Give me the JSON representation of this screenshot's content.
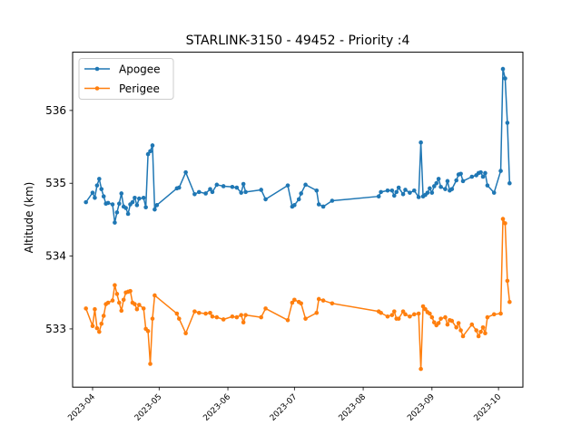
{
  "chart_data": {
    "type": "line",
    "title": "STARLINK-3150 - 49452 - Priority :4",
    "xlabel": "",
    "ylabel": "Altitude (km)",
    "x_type": "date",
    "xlim": [
      "2023-03-23",
      "2023-10-12"
    ],
    "ylim": [
      532.2,
      536.8
    ],
    "x_ticks": [
      "2023-04",
      "2023-05",
      "2023-06",
      "2023-07",
      "2023-08",
      "2023-09",
      "2023-10"
    ],
    "y_ticks": [
      533,
      534,
      535,
      536
    ],
    "grid": false,
    "legend_position": "upper left",
    "series": [
      {
        "name": "Apogee",
        "color": "#1f77b4",
        "points": [
          [
            "2023-03-29",
            534.74
          ],
          [
            "2023-04-01",
            534.87
          ],
          [
            "2023-04-02",
            534.8
          ],
          [
            "2023-04-03",
            534.97
          ],
          [
            "2023-04-04",
            535.06
          ],
          [
            "2023-04-05",
            534.92
          ],
          [
            "2023-04-06",
            534.82
          ],
          [
            "2023-04-07",
            534.72
          ],
          [
            "2023-04-08",
            534.73
          ],
          [
            "2023-04-10",
            534.71
          ],
          [
            "2023-04-11",
            534.46
          ],
          [
            "2023-04-12",
            534.6
          ],
          [
            "2023-04-13",
            534.72
          ],
          [
            "2023-04-14",
            534.86
          ],
          [
            "2023-04-15",
            534.68
          ],
          [
            "2023-04-16",
            534.66
          ],
          [
            "2023-04-17",
            534.58
          ],
          [
            "2023-04-18",
            534.71
          ],
          [
            "2023-04-19",
            534.74
          ],
          [
            "2023-04-20",
            534.8
          ],
          [
            "2023-04-21",
            534.7
          ],
          [
            "2023-04-22",
            534.79
          ],
          [
            "2023-04-24",
            534.8
          ],
          [
            "2023-04-25",
            534.67
          ],
          [
            "2023-04-26",
            535.4
          ],
          [
            "2023-04-27",
            535.44
          ],
          [
            "2023-04-28",
            535.52
          ],
          [
            "2023-04-29",
            534.64
          ],
          [
            "2023-04-30",
            534.7
          ],
          [
            "2023-05-09",
            534.93
          ],
          [
            "2023-05-10",
            534.94
          ],
          [
            "2023-05-13",
            535.15
          ],
          [
            "2023-05-17",
            534.85
          ],
          [
            "2023-05-19",
            534.88
          ],
          [
            "2023-05-22",
            534.86
          ],
          [
            "2023-05-24",
            534.92
          ],
          [
            "2023-05-25",
            534.88
          ],
          [
            "2023-05-27",
            534.98
          ],
          [
            "2023-05-30",
            534.96
          ],
          [
            "2023-06-03",
            534.95
          ],
          [
            "2023-06-05",
            534.94
          ],
          [
            "2023-06-07",
            534.87
          ],
          [
            "2023-06-08",
            534.99
          ],
          [
            "2023-06-09",
            534.88
          ],
          [
            "2023-06-16",
            534.91
          ],
          [
            "2023-06-18",
            534.78
          ],
          [
            "2023-06-28",
            534.97
          ],
          [
            "2023-06-30",
            534.68
          ],
          [
            "2023-07-01",
            534.7
          ],
          [
            "2023-07-03",
            534.78
          ],
          [
            "2023-07-04",
            534.86
          ],
          [
            "2023-07-06",
            534.98
          ],
          [
            "2023-07-11",
            534.9
          ],
          [
            "2023-07-12",
            534.71
          ],
          [
            "2023-07-14",
            534.68
          ],
          [
            "2023-07-18",
            534.76
          ],
          [
            "2023-08-08",
            534.82
          ],
          [
            "2023-08-09",
            534.88
          ],
          [
            "2023-08-12",
            534.9
          ],
          [
            "2023-08-14",
            534.9
          ],
          [
            "2023-08-15",
            534.83
          ],
          [
            "2023-08-16",
            534.88
          ],
          [
            "2023-08-17",
            534.94
          ],
          [
            "2023-08-19",
            534.85
          ],
          [
            "2023-08-20",
            534.91
          ],
          [
            "2023-08-22",
            534.87
          ],
          [
            "2023-08-24",
            534.9
          ],
          [
            "2023-08-26",
            534.81
          ],
          [
            "2023-08-27",
            535.56
          ],
          [
            "2023-08-28",
            534.82
          ],
          [
            "2023-08-29",
            534.84
          ],
          [
            "2023-08-30",
            534.87
          ],
          [
            "2023-08-31",
            534.93
          ],
          [
            "2023-09-01",
            534.87
          ],
          [
            "2023-09-02",
            534.96
          ],
          [
            "2023-09-03",
            535.0
          ],
          [
            "2023-09-04",
            535.06
          ],
          [
            "2023-09-05",
            534.95
          ],
          [
            "2023-09-07",
            534.92
          ],
          [
            "2023-09-08",
            535.03
          ],
          [
            "2023-09-09",
            534.9
          ],
          [
            "2023-09-10",
            534.92
          ],
          [
            "2023-09-12",
            535.04
          ],
          [
            "2023-09-13",
            535.12
          ],
          [
            "2023-09-14",
            535.13
          ],
          [
            "2023-09-15",
            535.03
          ],
          [
            "2023-09-19",
            535.09
          ],
          [
            "2023-09-21",
            535.11
          ],
          [
            "2023-09-22",
            535.14
          ],
          [
            "2023-09-23",
            535.15
          ],
          [
            "2023-09-24",
            535.09
          ],
          [
            "2023-09-25",
            535.14
          ],
          [
            "2023-09-26",
            534.97
          ],
          [
            "2023-09-29",
            534.87
          ],
          [
            "2023-10-02",
            535.17
          ],
          [
            "2023-10-03",
            536.57
          ],
          [
            "2023-10-04",
            536.44
          ],
          [
            "2023-10-05",
            535.83
          ],
          [
            "2023-10-06",
            535.0
          ]
        ]
      },
      {
        "name": "Perigee",
        "color": "#ff7f0e",
        "points": [
          [
            "2023-03-29",
            533.28
          ],
          [
            "2023-04-01",
            533.04
          ],
          [
            "2023-04-02",
            533.27
          ],
          [
            "2023-04-03",
            533.01
          ],
          [
            "2023-04-04",
            532.96
          ],
          [
            "2023-04-05",
            533.07
          ],
          [
            "2023-04-06",
            533.18
          ],
          [
            "2023-04-07",
            533.34
          ],
          [
            "2023-04-08",
            533.36
          ],
          [
            "2023-04-10",
            533.39
          ],
          [
            "2023-04-11",
            533.6
          ],
          [
            "2023-04-12",
            533.48
          ],
          [
            "2023-04-13",
            533.36
          ],
          [
            "2023-04-14",
            533.25
          ],
          [
            "2023-04-15",
            533.4
          ],
          [
            "2023-04-16",
            533.5
          ],
          [
            "2023-04-17",
            533.51
          ],
          [
            "2023-04-18",
            533.52
          ],
          [
            "2023-04-19",
            533.36
          ],
          [
            "2023-04-20",
            533.34
          ],
          [
            "2023-04-21",
            533.27
          ],
          [
            "2023-04-22",
            533.33
          ],
          [
            "2023-04-24",
            533.28
          ],
          [
            "2023-04-25",
            533.0
          ],
          [
            "2023-04-26",
            532.97
          ],
          [
            "2023-04-27",
            532.52
          ],
          [
            "2023-04-28",
            533.14
          ],
          [
            "2023-04-29",
            533.46
          ],
          [
            "2023-05-09",
            533.21
          ],
          [
            "2023-05-10",
            533.14
          ],
          [
            "2023-05-13",
            532.94
          ],
          [
            "2023-05-17",
            533.24
          ],
          [
            "2023-05-19",
            533.22
          ],
          [
            "2023-05-22",
            533.21
          ],
          [
            "2023-05-24",
            533.22
          ],
          [
            "2023-05-25",
            533.17
          ],
          [
            "2023-05-27",
            533.16
          ],
          [
            "2023-05-30",
            533.13
          ],
          [
            "2023-06-03",
            533.17
          ],
          [
            "2023-06-05",
            533.16
          ],
          [
            "2023-06-07",
            533.19
          ],
          [
            "2023-06-08",
            533.09
          ],
          [
            "2023-06-09",
            533.19
          ],
          [
            "2023-06-16",
            533.16
          ],
          [
            "2023-06-18",
            533.28
          ],
          [
            "2023-06-28",
            533.12
          ],
          [
            "2023-06-30",
            533.36
          ],
          [
            "2023-07-01",
            533.4
          ],
          [
            "2023-07-03",
            533.37
          ],
          [
            "2023-07-04",
            533.35
          ],
          [
            "2023-07-06",
            533.14
          ],
          [
            "2023-07-11",
            533.22
          ],
          [
            "2023-07-12",
            533.41
          ],
          [
            "2023-07-14",
            533.39
          ],
          [
            "2023-07-18",
            533.35
          ],
          [
            "2023-08-08",
            533.24
          ],
          [
            "2023-08-09",
            533.22
          ],
          [
            "2023-08-12",
            533.17
          ],
          [
            "2023-08-14",
            533.19
          ],
          [
            "2023-08-15",
            533.24
          ],
          [
            "2023-08-16",
            533.14
          ],
          [
            "2023-08-17",
            533.14
          ],
          [
            "2023-08-19",
            533.24
          ],
          [
            "2023-08-20",
            533.2
          ],
          [
            "2023-08-22",
            533.17
          ],
          [
            "2023-08-24",
            533.2
          ],
          [
            "2023-08-26",
            533.21
          ],
          [
            "2023-08-27",
            532.45
          ],
          [
            "2023-08-28",
            533.31
          ],
          [
            "2023-08-29",
            533.27
          ],
          [
            "2023-08-30",
            533.23
          ],
          [
            "2023-08-31",
            533.21
          ],
          [
            "2023-09-01",
            533.16
          ],
          [
            "2023-09-02",
            533.09
          ],
          [
            "2023-09-03",
            533.05
          ],
          [
            "2023-09-04",
            533.08
          ],
          [
            "2023-09-05",
            533.14
          ],
          [
            "2023-09-07",
            533.16
          ],
          [
            "2023-09-08",
            533.06
          ],
          [
            "2023-09-09",
            533.12
          ],
          [
            "2023-09-10",
            533.11
          ],
          [
            "2023-09-12",
            533.02
          ],
          [
            "2023-09-13",
            533.08
          ],
          [
            "2023-09-14",
            532.98
          ],
          [
            "2023-09-15",
            532.9
          ],
          [
            "2023-09-19",
            533.06
          ],
          [
            "2023-09-21",
            532.98
          ],
          [
            "2023-09-22",
            532.9
          ],
          [
            "2023-09-23",
            532.96
          ],
          [
            "2023-09-24",
            533.02
          ],
          [
            "2023-09-25",
            532.94
          ],
          [
            "2023-09-26",
            533.16
          ],
          [
            "2023-09-29",
            533.2
          ],
          [
            "2023-10-02",
            533.21
          ],
          [
            "2023-10-03",
            534.51
          ],
          [
            "2023-10-04",
            534.45
          ],
          [
            "2023-10-05",
            533.66
          ],
          [
            "2023-10-06",
            533.37
          ]
        ]
      }
    ]
  }
}
